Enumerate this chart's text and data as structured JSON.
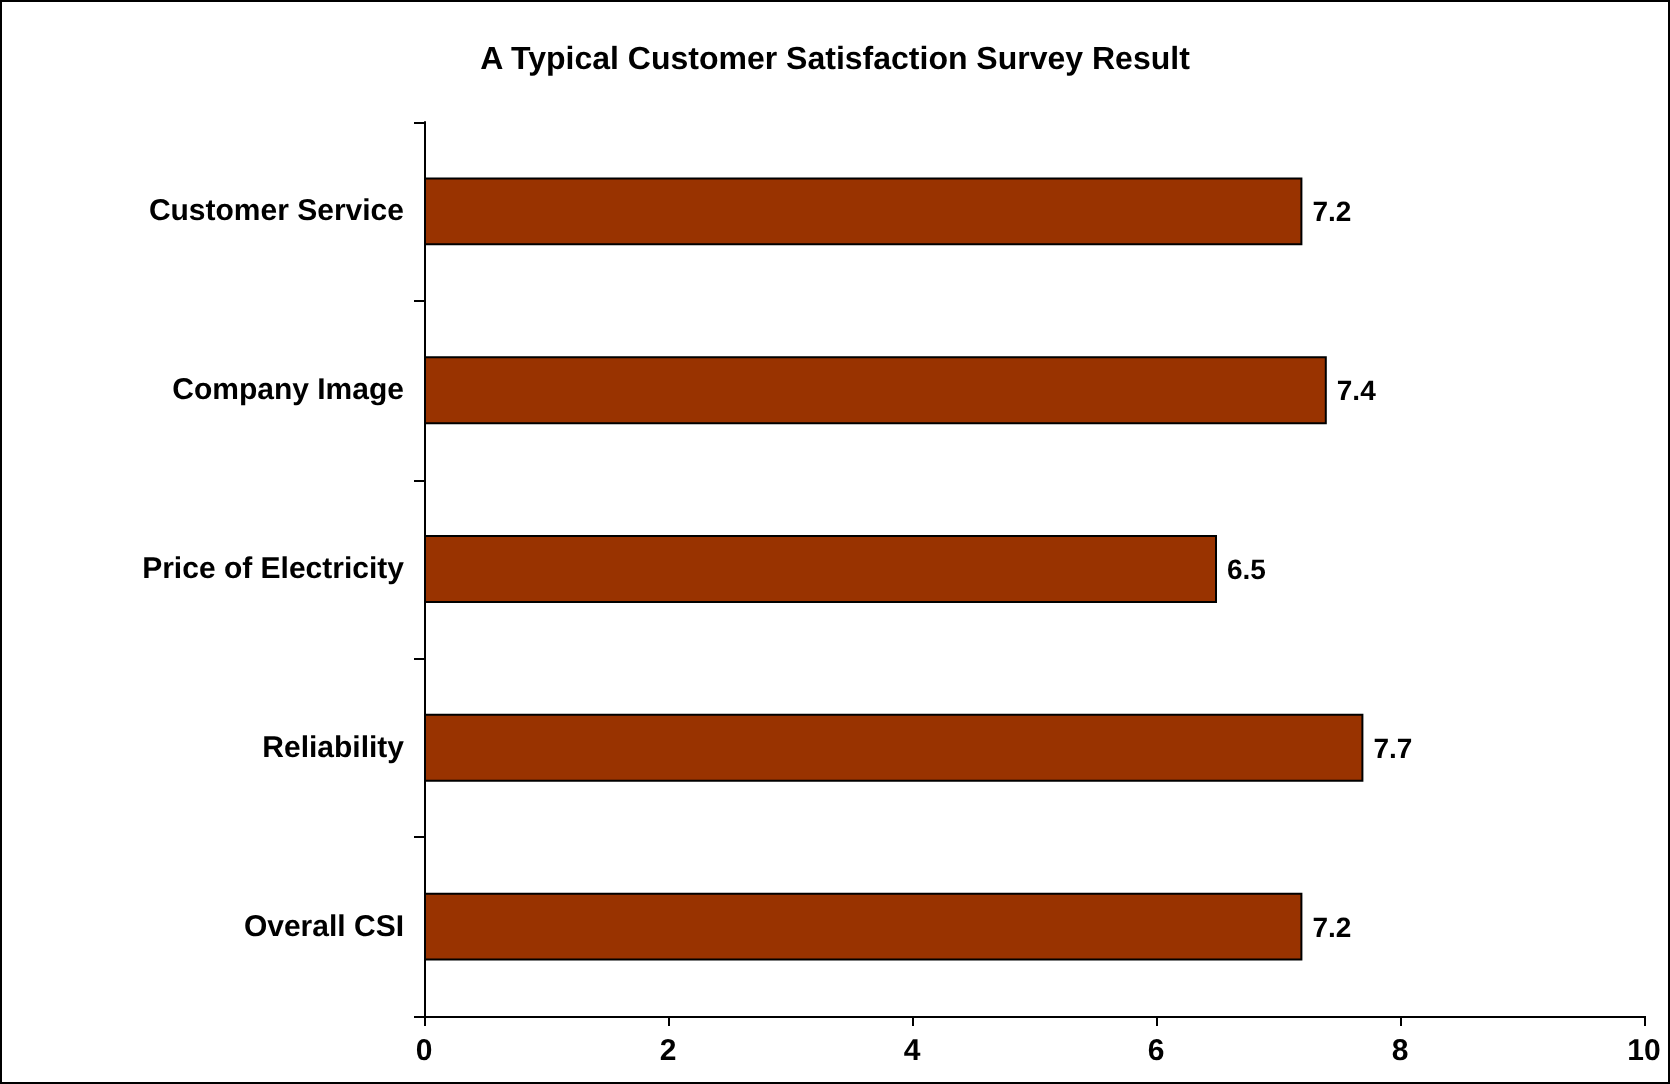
{
  "chart_data": {
    "type": "bar",
    "orientation": "horizontal",
    "title": "A Typical Customer Satisfaction Survey Result",
    "categories": [
      "Customer Service",
      "Company Image",
      "Price of Electricity",
      "Reliability",
      "Overall CSI"
    ],
    "values": [
      7.2,
      7.4,
      6.5,
      7.7,
      7.2
    ],
    "color": "#993300",
    "xlim": [
      0,
      10
    ],
    "xticks": [
      0,
      2,
      4,
      6,
      8,
      10
    ],
    "grid": false,
    "data_labels": true
  }
}
